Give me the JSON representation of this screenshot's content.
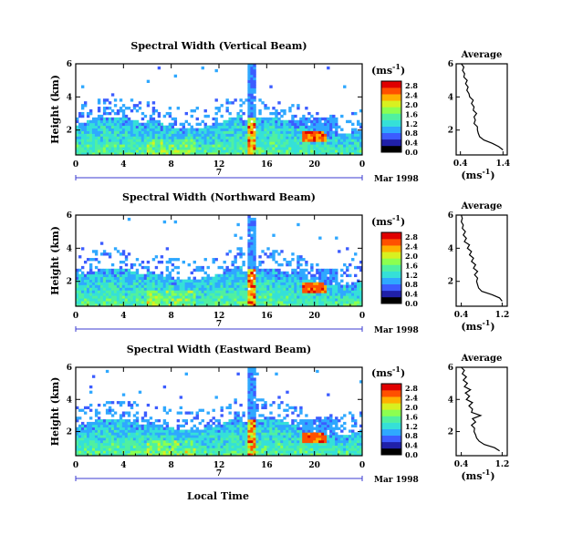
{
  "figure": {
    "xlabel": "Local Time",
    "date_label": "Mar 1998",
    "day_label": "7",
    "ylabel": "Height (km)",
    "colorbar_unit": "(ms",
    "colorbar_unit_exp": "-1",
    "profile_title": "Average",
    "profile_xlabel": "(ms",
    "profile_xlabel_exp": "-1"
  },
  "colormap": [
    "#000000",
    "#2020a8",
    "#3c5cff",
    "#2fa8ff",
    "#35e0d8",
    "#50f0a0",
    "#8cff50",
    "#d8f020",
    "#ffb000",
    "#ff5000",
    "#e00000"
  ],
  "chart_data": [
    {
      "type": "heatmap",
      "title": "Spectral Width (Vertical Beam)",
      "x_ticks": [
        "0",
        "4",
        "8",
        "12",
        "16",
        "20",
        "0"
      ],
      "x_range": [
        0,
        24
      ],
      "y_ticks": [
        "2",
        "4",
        "6"
      ],
      "y_range": [
        0.5,
        6
      ],
      "colorbar_ticks": [
        "0.0",
        "0.4",
        "0.8",
        "1.2",
        "1.6",
        "2.0",
        "2.4",
        "2.8"
      ],
      "colorbar_range": [
        0,
        3.0
      ],
      "profile": {
        "title": "Average",
        "x_ticks": [
          "0.4",
          "1.4"
        ],
        "xlim": [
          0.3,
          1.5
        ],
        "ylim": [
          0.5,
          6
        ],
        "y_ticks": [
          "2",
          "4",
          "6"
        ],
        "height_km": [
          0.8,
          1.0,
          1.2,
          1.4,
          1.6,
          1.8,
          2.0,
          2.2,
          2.4,
          2.6,
          2.8,
          3.0,
          3.2,
          3.4,
          3.6,
          3.8,
          4.0,
          4.2,
          4.4,
          4.6,
          4.8,
          5.0,
          5.2,
          5.4,
          5.6,
          5.8,
          6.0
        ],
        "width_ms": [
          1.4,
          1.3,
          1.15,
          0.95,
          0.85,
          0.82,
          0.8,
          0.8,
          0.72,
          0.75,
          0.72,
          0.78,
          0.7,
          0.72,
          0.66,
          0.7,
          0.62,
          0.6,
          0.55,
          0.58,
          0.52,
          0.56,
          0.48,
          0.5,
          0.45,
          0.48,
          0.42
        ]
      }
    },
    {
      "type": "heatmap",
      "title": "Spectral Width (Northward Beam)",
      "x_ticks": [
        "0",
        "4",
        "8",
        "12",
        "16",
        "20",
        "0"
      ],
      "x_range": [
        0,
        24
      ],
      "y_ticks": [
        "2",
        "4",
        "6"
      ],
      "y_range": [
        0.5,
        6
      ],
      "colorbar_ticks": [
        "0.0",
        "0.4",
        "0.8",
        "1.2",
        "1.6",
        "2.0",
        "2.4",
        "2.8"
      ],
      "colorbar_range": [
        0,
        3.0
      ],
      "profile": {
        "title": "Average",
        "x_ticks": [
          "0.4",
          "1.2"
        ],
        "xlim": [
          0.3,
          1.3
        ],
        "ylim": [
          0.5,
          6
        ],
        "y_ticks": [
          "2",
          "4",
          "6"
        ],
        "height_km": [
          0.8,
          1.0,
          1.2,
          1.4,
          1.6,
          1.8,
          2.0,
          2.2,
          2.4,
          2.6,
          2.8,
          3.0,
          3.2,
          3.4,
          3.6,
          3.8,
          4.0,
          4.2,
          4.4,
          4.6,
          4.8,
          5.0,
          5.2,
          5.4,
          5.6,
          5.8,
          6.0
        ],
        "width_ms": [
          1.2,
          1.15,
          1.0,
          0.8,
          0.74,
          0.72,
          0.7,
          0.72,
          0.66,
          0.72,
          0.64,
          0.68,
          0.6,
          0.64,
          0.56,
          0.6,
          0.52,
          0.56,
          0.46,
          0.5,
          0.44,
          0.48,
          0.42,
          0.44,
          0.4,
          0.42,
          0.4
        ]
      }
    },
    {
      "type": "heatmap",
      "title": "Spectral Width (Eastward Beam)",
      "x_ticks": [
        "0",
        "4",
        "8",
        "12",
        "16",
        "20",
        "0"
      ],
      "x_range": [
        0,
        24
      ],
      "y_ticks": [
        "2",
        "4",
        "6"
      ],
      "y_range": [
        0.5,
        6
      ],
      "colorbar_ticks": [
        "0.0",
        "0.4",
        "0.8",
        "1.2",
        "1.6",
        "2.0",
        "2.4",
        "2.8"
      ],
      "colorbar_range": [
        0,
        3.0
      ],
      "profile": {
        "title": "Average",
        "x_ticks": [
          "0.4",
          "1.2"
        ],
        "xlim": [
          0.3,
          1.3
        ],
        "ylim": [
          0.5,
          6
        ],
        "y_ticks": [
          "2",
          "4",
          "6"
        ],
        "height_km": [
          0.8,
          1.0,
          1.2,
          1.4,
          1.6,
          1.8,
          2.0,
          2.2,
          2.4,
          2.6,
          2.8,
          3.0,
          3.2,
          3.4,
          3.6,
          3.8,
          4.0,
          4.2,
          4.4,
          4.6,
          4.8,
          5.0,
          5.2,
          5.4,
          5.6,
          5.8,
          6.0
        ],
        "width_ms": [
          1.15,
          1.05,
          0.85,
          0.75,
          0.7,
          0.68,
          0.65,
          0.66,
          0.6,
          0.68,
          0.62,
          0.78,
          0.6,
          0.62,
          0.55,
          0.62,
          0.5,
          0.56,
          0.48,
          0.58,
          0.46,
          0.52,
          0.44,
          0.5,
          0.42,
          0.46,
          0.4
        ]
      }
    }
  ]
}
